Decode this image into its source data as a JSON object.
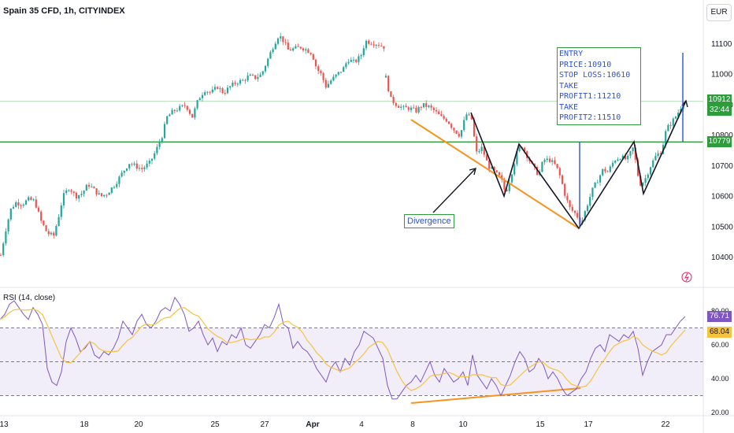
{
  "header": {
    "title": "Spain 35 CFD, 1h, CITYINDEX",
    "currency": "EUR"
  },
  "price_axis": {
    "ticks": [
      "11100",
      "11000",
      "10900",
      "10800",
      "10700",
      "10600",
      "10500",
      "10400"
    ]
  },
  "price_tags": {
    "current": "10912",
    "countdown": "32:44",
    "level": "10779"
  },
  "annotations": {
    "trade_plan": [
      "ENTRY PRICE:10910",
      "STOP LOSS:10610",
      "TAKE PROFIT1:11210",
      "TAKE PROFIT2:11510"
    ],
    "divergence_label": "Divergence"
  },
  "rsi": {
    "label": "RSI (14, close)",
    "axis_ticks": [
      "80.00",
      "60.00",
      "40.00",
      "20.00"
    ],
    "value": "76.71",
    "ma_value": "68.04"
  },
  "time_axis": {
    "labels": [
      "13",
      "18",
      "20",
      "25",
      "27",
      "Apr",
      "4",
      "8",
      "10",
      "15",
      "17",
      "22"
    ]
  },
  "colors": {
    "up": "#26a69a",
    "down": "#ef5350",
    "trend": "#f7931e",
    "zigzag": "#131722",
    "level_line": "#2e9b3c",
    "vertical_marker": "#2a53d6",
    "rsi_line": "#7e57c2",
    "rsi_ma": "#f5c242",
    "rsi_band": "#7e57c2"
  },
  "chart_data": {
    "type": "candlestick",
    "title": "Spain 35 CFD, 1h, CITYINDEX",
    "ylim": [
      10350,
      11180
    ],
    "levels": [
      10779,
      10912
    ],
    "trade_plan": {
      "entry": 10910,
      "stop_loss": 10610,
      "take_profit_1": 11210,
      "take_profit_2": 11510
    },
    "close_path": [
      [
        0,
        10395
      ],
      [
        8,
        10500
      ],
      [
        14,
        10560
      ],
      [
        20,
        10580
      ],
      [
        28,
        10575
      ],
      [
        36,
        10590
      ],
      [
        44,
        10585
      ],
      [
        52,
        10520
      ],
      [
        60,
        10480
      ],
      [
        68,
        10470
      ],
      [
        74,
        10530
      ],
      [
        80,
        10600
      ],
      [
        88,
        10630
      ],
      [
        96,
        10600
      ],
      [
        104,
        10610
      ],
      [
        112,
        10640
      ],
      [
        120,
        10620
      ],
      [
        128,
        10600
      ],
      [
        136,
        10610
      ],
      [
        146,
        10640
      ],
      [
        156,
        10680
      ],
      [
        164,
        10710
      ],
      [
        172,
        10700
      ],
      [
        180,
        10690
      ],
      [
        190,
        10710
      ],
      [
        198,
        10750
      ],
      [
        206,
        10800
      ],
      [
        212,
        10860
      ],
      [
        220,
        10880
      ],
      [
        228,
        10890
      ],
      [
        236,
        10900
      ],
      [
        244,
        10860
      ],
      [
        252,
        10920
      ],
      [
        260,
        10950
      ],
      [
        268,
        10940
      ],
      [
        276,
        10960
      ],
      [
        284,
        10940
      ],
      [
        292,
        10960
      ],
      [
        300,
        10975
      ],
      [
        308,
        10980
      ],
      [
        316,
        10995
      ],
      [
        324,
        10990
      ],
      [
        332,
        11000
      ],
      [
        340,
        11050
      ],
      [
        348,
        11100
      ],
      [
        354,
        11130
      ],
      [
        360,
        11110
      ],
      [
        366,
        11080
      ],
      [
        374,
        11085
      ],
      [
        382,
        11090
      ],
      [
        390,
        11080
      ],
      [
        396,
        11070
      ],
      [
        402,
        11020
      ],
      [
        408,
        11000
      ],
      [
        414,
        10960
      ],
      [
        420,
        10980
      ],
      [
        428,
        11000
      ],
      [
        436,
        11020
      ],
      [
        442,
        11050
      ],
      [
        450,
        11040
      ],
      [
        458,
        11060
      ],
      [
        464,
        11110
      ],
      [
        472,
        11105
      ],
      [
        480,
        11100
      ],
      [
        488,
        11090
      ]
    ],
    "close_path_2": [
      [
        490,
        10990
      ],
      [
        496,
        10920
      ],
      [
        504,
        10900
      ],
      [
        512,
        10890
      ],
      [
        520,
        10890
      ],
      [
        528,
        10880
      ],
      [
        536,
        10900
      ],
      [
        544,
        10895
      ],
      [
        552,
        10880
      ],
      [
        560,
        10860
      ],
      [
        568,
        10850
      ],
      [
        576,
        10820
      ],
      [
        584,
        10800
      ],
      [
        592,
        10870
      ],
      [
        600,
        10850
      ],
      [
        604,
        10740
      ],
      [
        612,
        10760
      ],
      [
        620,
        10700
      ],
      [
        628,
        10680
      ],
      [
        636,
        10660
      ],
      [
        642,
        10610
      ],
      [
        650,
        10680
      ],
      [
        656,
        10740
      ],
      [
        662,
        10770
      ],
      [
        668,
        10740
      ],
      [
        676,
        10700
      ],
      [
        684,
        10670
      ],
      [
        690,
        10720
      ],
      [
        698,
        10720
      ],
      [
        706,
        10700
      ],
      [
        712,
        10660
      ],
      [
        718,
        10600
      ],
      [
        724,
        10560
      ],
      [
        732,
        10540
      ],
      [
        738,
        10510
      ],
      [
        744,
        10560
      ],
      [
        752,
        10620
      ],
      [
        760,
        10660
      ],
      [
        766,
        10690
      ],
      [
        772,
        10680
      ],
      [
        780,
        10720
      ],
      [
        788,
        10730
      ],
      [
        796,
        10720
      ],
      [
        804,
        10760
      ],
      [
        812,
        10640
      ],
      [
        818,
        10650
      ],
      [
        826,
        10700
      ],
      [
        832,
        10730
      ],
      [
        840,
        10750
      ],
      [
        846,
        10820
      ],
      [
        852,
        10840
      ],
      [
        860,
        10870
      ],
      [
        868,
        10912
      ]
    ],
    "rsi_series": [
      [
        0,
        75
      ],
      [
        6,
        78
      ],
      [
        12,
        84
      ],
      [
        18,
        86
      ],
      [
        24,
        82
      ],
      [
        30,
        78
      ],
      [
        36,
        75
      ],
      [
        42,
        82
      ],
      [
        48,
        78
      ],
      [
        54,
        72
      ],
      [
        60,
        46
      ],
      [
        66,
        38
      ],
      [
        72,
        36
      ],
      [
        78,
        44
      ],
      [
        84,
        62
      ],
      [
        90,
        70
      ],
      [
        96,
        64
      ],
      [
        102,
        56
      ],
      [
        108,
        58
      ],
      [
        114,
        62
      ],
      [
        120,
        54
      ],
      [
        126,
        52
      ],
      [
        132,
        56
      ],
      [
        138,
        54
      ],
      [
        144,
        58
      ],
      [
        150,
        64
      ],
      [
        156,
        74
      ],
      [
        162,
        70
      ],
      [
        168,
        66
      ],
      [
        174,
        74
      ],
      [
        180,
        78
      ],
      [
        186,
        72
      ],
      [
        192,
        70
      ],
      [
        198,
        74
      ],
      [
        204,
        80
      ],
      [
        210,
        82
      ],
      [
        216,
        80
      ],
      [
        222,
        88
      ],
      [
        228,
        84
      ],
      [
        234,
        78
      ],
      [
        240,
        68
      ],
      [
        246,
        70
      ],
      [
        252,
        74
      ],
      [
        258,
        66
      ],
      [
        264,
        60
      ],
      [
        270,
        64
      ],
      [
        276,
        56
      ],
      [
        282,
        62
      ],
      [
        288,
        60
      ],
      [
        294,
        66
      ],
      [
        300,
        64
      ],
      [
        306,
        70
      ],
      [
        312,
        60
      ],
      [
        318,
        58
      ],
      [
        324,
        62
      ],
      [
        330,
        66
      ],
      [
        336,
        72
      ],
      [
        342,
        70
      ],
      [
        348,
        76
      ],
      [
        354,
        84
      ],
      [
        360,
        72
      ],
      [
        366,
        70
      ],
      [
        372,
        58
      ],
      [
        378,
        62
      ],
      [
        384,
        58
      ],
      [
        390,
        56
      ],
      [
        396,
        52
      ],
      [
        402,
        46
      ],
      [
        408,
        42
      ],
      [
        414,
        38
      ],
      [
        420,
        46
      ],
      [
        426,
        50
      ],
      [
        432,
        44
      ],
      [
        438,
        52
      ],
      [
        444,
        48
      ],
      [
        450,
        56
      ],
      [
        456,
        60
      ],
      [
        462,
        68
      ],
      [
        468,
        66
      ],
      [
        474,
        64
      ],
      [
        480,
        58
      ],
      [
        486,
        52
      ],
      [
        492,
        36
      ],
      [
        498,
        28
      ],
      [
        504,
        28
      ],
      [
        510,
        32
      ],
      [
        516,
        36
      ],
      [
        522,
        38
      ],
      [
        528,
        42
      ],
      [
        534,
        38
      ],
      [
        540,
        44
      ],
      [
        546,
        50
      ],
      [
        552,
        42
      ],
      [
        558,
        38
      ],
      [
        564,
        46
      ],
      [
        570,
        42
      ],
      [
        576,
        38
      ],
      [
        582,
        40
      ],
      [
        588,
        44
      ],
      [
        594,
        36
      ],
      [
        600,
        54
      ],
      [
        606,
        42
      ],
      [
        612,
        38
      ],
      [
        618,
        34
      ],
      [
        624,
        40
      ],
      [
        630,
        36
      ],
      [
        636,
        30
      ],
      [
        642,
        36
      ],
      [
        648,
        42
      ],
      [
        654,
        50
      ],
      [
        660,
        56
      ],
      [
        666,
        52
      ],
      [
        672,
        44
      ],
      [
        678,
        46
      ],
      [
        684,
        52
      ],
      [
        690,
        48
      ],
      [
        696,
        40
      ],
      [
        702,
        44
      ],
      [
        708,
        40
      ],
      [
        714,
        34
      ],
      [
        720,
        30
      ],
      [
        726,
        32
      ],
      [
        732,
        34
      ],
      [
        738,
        40
      ],
      [
        744,
        44
      ],
      [
        750,
        52
      ],
      [
        756,
        58
      ],
      [
        762,
        60
      ],
      [
        768,
        56
      ],
      [
        774,
        66
      ],
      [
        780,
        64
      ],
      [
        786,
        62
      ],
      [
        792,
        66
      ],
      [
        798,
        64
      ],
      [
        804,
        68
      ],
      [
        810,
        58
      ],
      [
        816,
        42
      ],
      [
        822,
        50
      ],
      [
        828,
        56
      ],
      [
        834,
        58
      ],
      [
        840,
        60
      ],
      [
        846,
        66
      ],
      [
        852,
        66
      ],
      [
        858,
        70
      ],
      [
        864,
        74
      ],
      [
        870,
        76.71
      ]
    ]
  }
}
